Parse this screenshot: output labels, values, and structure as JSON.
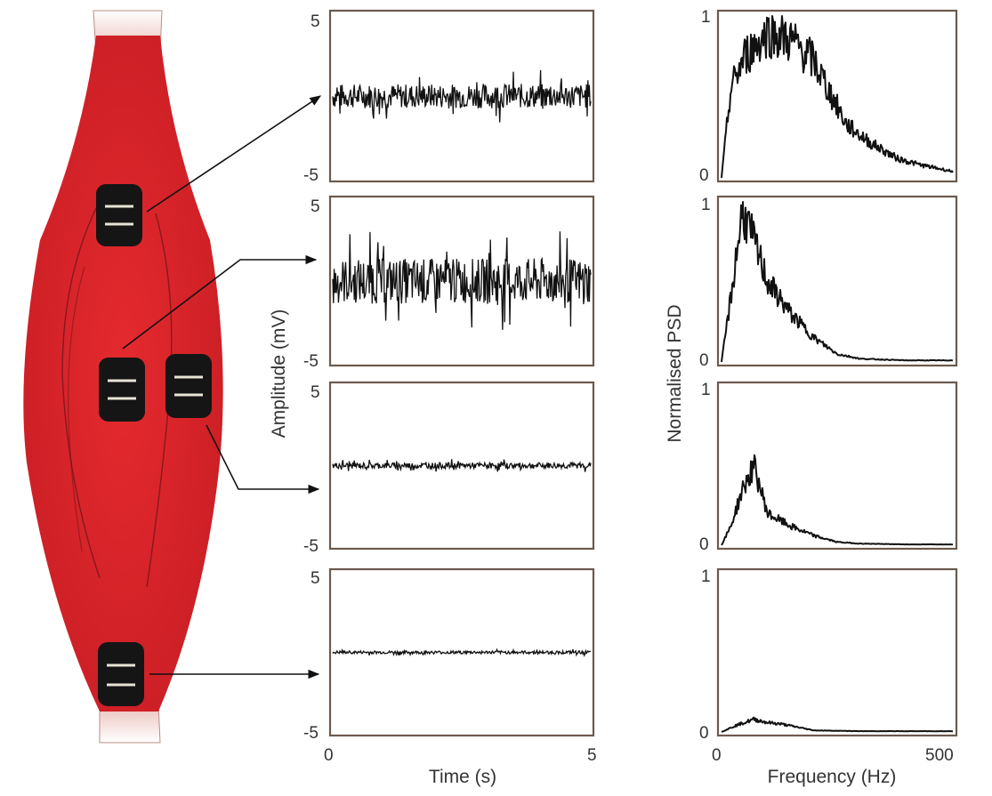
{
  "figure": {
    "muscle_color": "#e0282d",
    "tendon_color": "#f2d2cc",
    "signal_color": "#111111",
    "electrode_count": 4
  },
  "emg_axes": {
    "ylabel": "Amplitude (mV)",
    "xlabel": "Time (s)",
    "y_top_tick": "5",
    "y_bottom_tick": "-5",
    "x_left_tick": "0",
    "x_right_tick": "5"
  },
  "psd_axes": {
    "ylabel": "Normalised PSD",
    "xlabel": "Frequency (Hz)",
    "y_top_tick": "1",
    "y_bottom_tick": "0",
    "x_left_tick": "0",
    "x_right_tick": "500"
  },
  "chart_data": [
    {
      "type": "line",
      "name": "EMG signals",
      "xlabel": "Time (s)",
      "ylabel": "Amplitude (mV)",
      "xlim": [
        0,
        5
      ],
      "ylim": [
        -5,
        5
      ],
      "panels": [
        {
          "panel": 1,
          "amplitude_peak": 1.6
        },
        {
          "panel": 2,
          "amplitude_peak": 3.0
        },
        {
          "panel": 3,
          "amplitude_peak": 0.4
        },
        {
          "panel": 4,
          "amplitude_peak": 0.2
        }
      ]
    },
    {
      "type": "line",
      "name": "Power spectral density",
      "xlabel": "Frequency (Hz)",
      "ylabel": "Normalised PSD",
      "xlim": [
        0,
        500
      ],
      "ylim": [
        0,
        1
      ],
      "panels": [
        {
          "panel": 1,
          "peak_frequency_hz": 100,
          "peak_psd": 0.9,
          "points": [
            [
              0,
              0
            ],
            [
              20,
              0.55
            ],
            [
              50,
              0.75
            ],
            [
              100,
              0.9
            ],
            [
              150,
              0.85
            ],
            [
              200,
              0.72
            ],
            [
              230,
              0.55
            ],
            [
              270,
              0.33
            ],
            [
              320,
              0.22
            ],
            [
              380,
              0.12
            ],
            [
              430,
              0.08
            ],
            [
              500,
              0.04
            ]
          ]
        },
        {
          "panel": 2,
          "peak_frequency_hz": 50,
          "peak_psd": 0.95,
          "points": [
            [
              0,
              0
            ],
            [
              20,
              0.4
            ],
            [
              45,
              0.95
            ],
            [
              70,
              0.75
            ],
            [
              100,
              0.5
            ],
            [
              150,
              0.3
            ],
            [
              200,
              0.15
            ],
            [
              250,
              0.05
            ],
            [
              300,
              0.02
            ],
            [
              400,
              0.01
            ],
            [
              500,
              0.01
            ]
          ]
        },
        {
          "panel": 3,
          "peak_frequency_hz": 70,
          "peak_psd": 0.5,
          "points": [
            [
              0,
              0
            ],
            [
              20,
              0.12
            ],
            [
              45,
              0.35
            ],
            [
              70,
              0.5
            ],
            [
              100,
              0.2
            ],
            [
              150,
              0.12
            ],
            [
              200,
              0.06
            ],
            [
              250,
              0.02
            ],
            [
              300,
              0.01
            ],
            [
              400,
              0.005
            ],
            [
              500,
              0.005
            ]
          ]
        },
        {
          "panel": 4,
          "peak_frequency_hz": 80,
          "peak_psd": 0.08,
          "points": [
            [
              0,
              0
            ],
            [
              30,
              0.04
            ],
            [
              70,
              0.08
            ],
            [
              100,
              0.06
            ],
            [
              130,
              0.05
            ],
            [
              200,
              0.01
            ],
            [
              300,
              0.005
            ],
            [
              500,
              0.005
            ]
          ]
        }
      ]
    }
  ]
}
